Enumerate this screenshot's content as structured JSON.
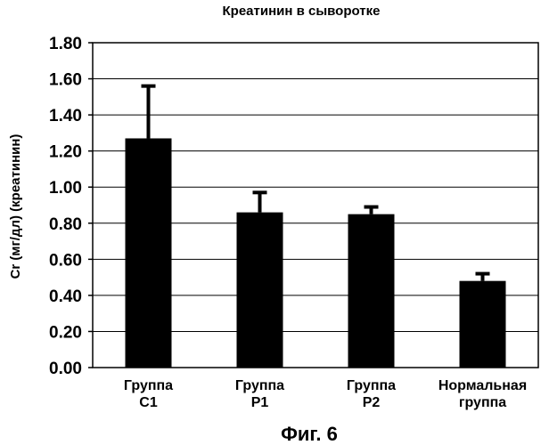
{
  "chart_data": {
    "type": "bar",
    "title": "Креатинин в сыворотке",
    "xlabel": "",
    "ylabel": "Cr (мг/дл) (креатинин)",
    "ylim": [
      0,
      1.8
    ],
    "yticks": [
      "0.00",
      "0.20",
      "0.40",
      "0.60",
      "0.80",
      "1.00",
      "1.20",
      "1.40",
      "1.60",
      "1.80"
    ],
    "grid": true,
    "categories": [
      [
        "Группа",
        "C1"
      ],
      [
        "Группа",
        "P1"
      ],
      [
        "Группа",
        "P2"
      ],
      [
        "Нормальная",
        "группа"
      ]
    ],
    "values": [
      1.27,
      0.86,
      0.85,
      0.48
    ],
    "error_plus": [
      0.29,
      0.11,
      0.04,
      0.04
    ],
    "colors": {
      "bar": "#000000",
      "grid": "#000000",
      "background": "#ffffff"
    }
  },
  "caption": "Фиг. 6"
}
